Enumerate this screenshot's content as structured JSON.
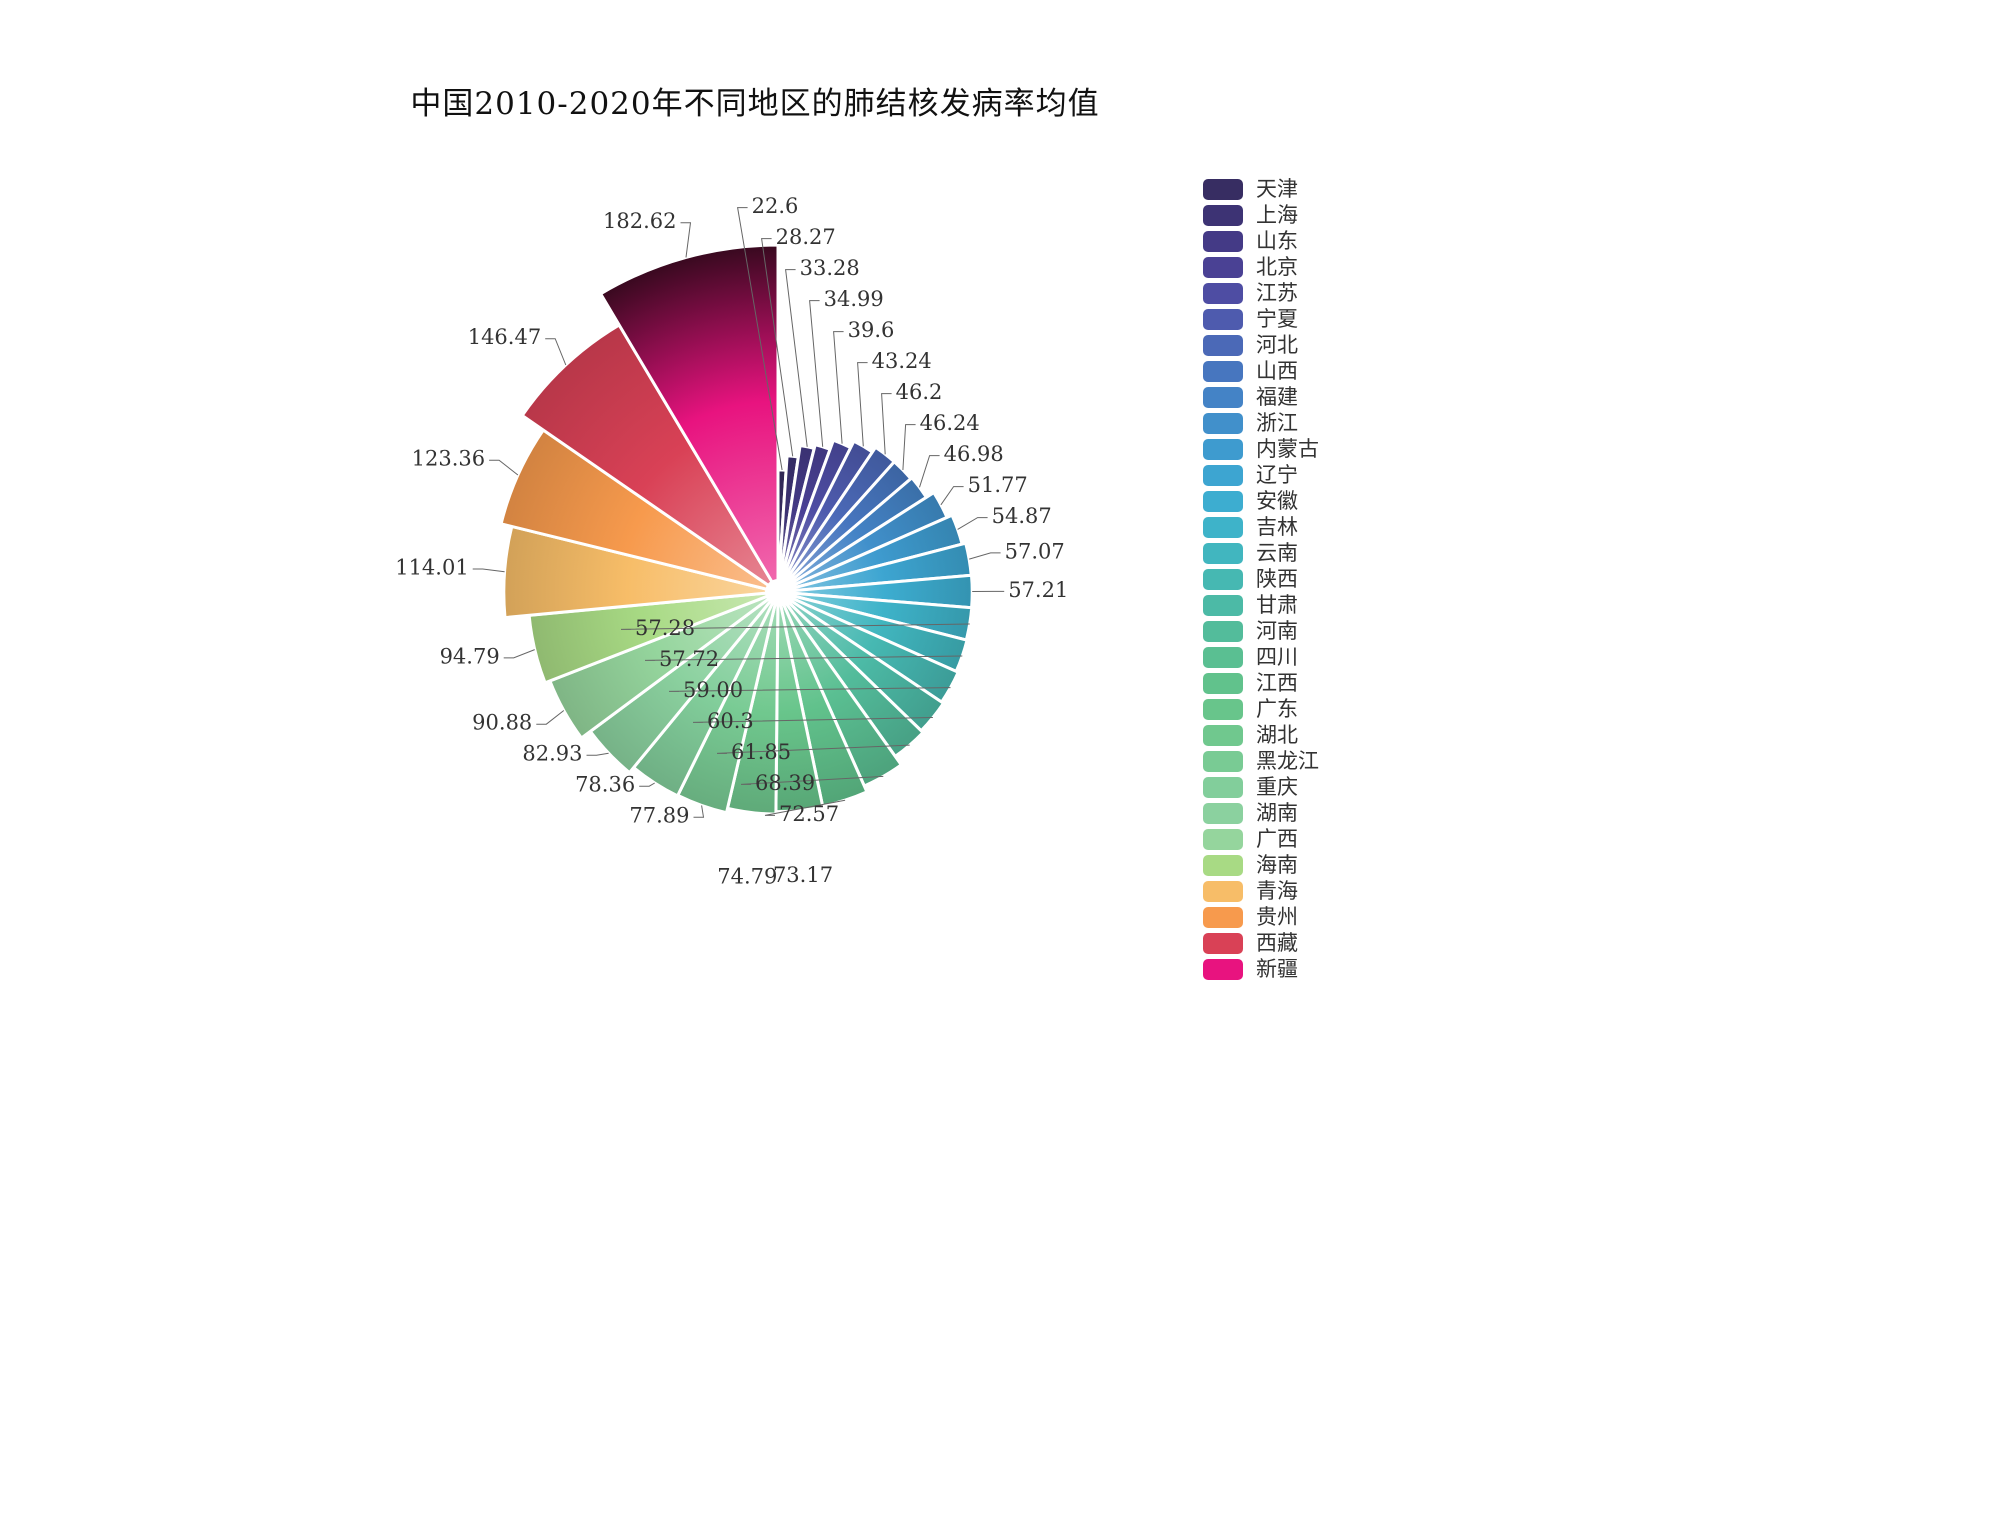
{
  "title": "中国2010-2020年不同地区的肺结核发病率均值",
  "chart_data": {
    "type": "pie",
    "variant": "nightingale-rose",
    "title": "中国2010-2020年不同地区的肺结核发病率均值",
    "legend_position": "right",
    "angle_mode": "proportional-to-value",
    "radius_mode": "proportional-to-value",
    "categories": [
      "天津",
      "上海",
      "山东",
      "北京",
      "江苏",
      "宁夏",
      "河北",
      "山西",
      "福建",
      "浙江",
      "内蒙古",
      "辽宁",
      "安徽",
      "吉林",
      "云南",
      "陕西",
      "甘肃",
      "河南",
      "四川",
      "江西",
      "广东",
      "湖北",
      "黑龙江",
      "重庆",
      "湖南",
      "广西",
      "海南",
      "青海",
      "贵州",
      "西藏",
      "新疆"
    ],
    "values": [
      22.6,
      28.27,
      33.28,
      34.99,
      39.6,
      43.24,
      46.2,
      46.24,
      46.98,
      51.77,
      54.87,
      57.07,
      57.21,
      57.28,
      57.72,
      59.0,
      60.3,
      61.85,
      68.39,
      72.57,
      73.17,
      74.79,
      77.89,
      78.36,
      82.93,
      90.88,
      94.79,
      114.01,
      123.36,
      146.47,
      182.62
    ],
    "items": [
      {
        "name": "天津",
        "value": 22.6,
        "label": "22.6",
        "color": "#372d62"
      },
      {
        "name": "上海",
        "value": 28.27,
        "label": "28.27",
        "color": "#3d3374"
      },
      {
        "name": "山东",
        "value": 33.28,
        "label": "33.28",
        "color": "#443a86"
      },
      {
        "name": "北京",
        "value": 34.99,
        "label": "34.99",
        "color": "#4a4194"
      },
      {
        "name": "江苏",
        "value": 39.6,
        "label": "39.6",
        "color": "#4e4da3"
      },
      {
        "name": "宁夏",
        "value": 43.24,
        "label": "43.24",
        "color": "#4e5bae"
      },
      {
        "name": "河北",
        "value": 46.2,
        "label": "46.2",
        "color": "#4b69b7"
      },
      {
        "name": "山西",
        "value": 46.24,
        "label": "46.24",
        "color": "#4776bf"
      },
      {
        "name": "福建",
        "value": 46.98,
        "label": "46.98",
        "color": "#4483c6"
      },
      {
        "name": "浙江",
        "value": 51.77,
        "label": "51.77",
        "color": "#4190cb"
      },
      {
        "name": "内蒙古",
        "value": 54.87,
        "label": "54.87",
        "color": "#3e9bcf"
      },
      {
        "name": "辽宁",
        "value": 57.07,
        "label": "57.07",
        "color": "#3da5d1"
      },
      {
        "name": "安徽",
        "value": 57.21,
        "label": "57.21",
        "color": "#3dadd0"
      },
      {
        "name": "吉林",
        "value": 57.28,
        "label": "57.28",
        "color": "#3eb3c9"
      },
      {
        "name": "云南",
        "value": 57.72,
        "label": "57.72",
        "color": "#41b6bf"
      },
      {
        "name": "陕西",
        "value": 59.0,
        "label": "59.00",
        "color": "#46b8b2"
      },
      {
        "name": "甘肃",
        "value": 60.3,
        "label": "60.3",
        "color": "#4cbaa6"
      },
      {
        "name": "河南",
        "value": 61.85,
        "label": "61.85",
        "color": "#53bc9b"
      },
      {
        "name": "四川",
        "value": 68.39,
        "label": "68.39",
        "color": "#5abf92"
      },
      {
        "name": "江西",
        "value": 72.57,
        "label": "72.57",
        "color": "#61c28c"
      },
      {
        "name": "广东",
        "value": 73.17,
        "label": "73.17",
        "color": "#68c58b"
      },
      {
        "name": "湖北",
        "value": 74.79,
        "label": "74.79",
        "color": "#70c88e"
      },
      {
        "name": "黑龙江",
        "value": 77.89,
        "label": "77.89",
        "color": "#79cb94"
      },
      {
        "name": "重庆",
        "value": 78.36,
        "label": "78.36",
        "color": "#82ce9b"
      },
      {
        "name": "湖南",
        "value": 82.93,
        "label": "82.93",
        "color": "#8bd19f"
      },
      {
        "name": "广西",
        "value": 90.88,
        "label": "90.88",
        "color": "#95d59d"
      },
      {
        "name": "海南",
        "value": 94.79,
        "label": "94.79",
        "color": "#a8da84"
      },
      {
        "name": "青海",
        "value": 114.01,
        "label": "114.01",
        "color": "#f7bd68"
      },
      {
        "name": "贵州",
        "value": 123.36,
        "label": "123.36",
        "color": "#f79a4d"
      },
      {
        "name": "西藏",
        "value": 146.47,
        "label": "146.47",
        "color": "#d94156"
      },
      {
        "name": "新疆",
        "value": 182.62,
        "label": "182.62",
        "color": "#e8137f",
        "outer": "#38091f"
      }
    ]
  }
}
